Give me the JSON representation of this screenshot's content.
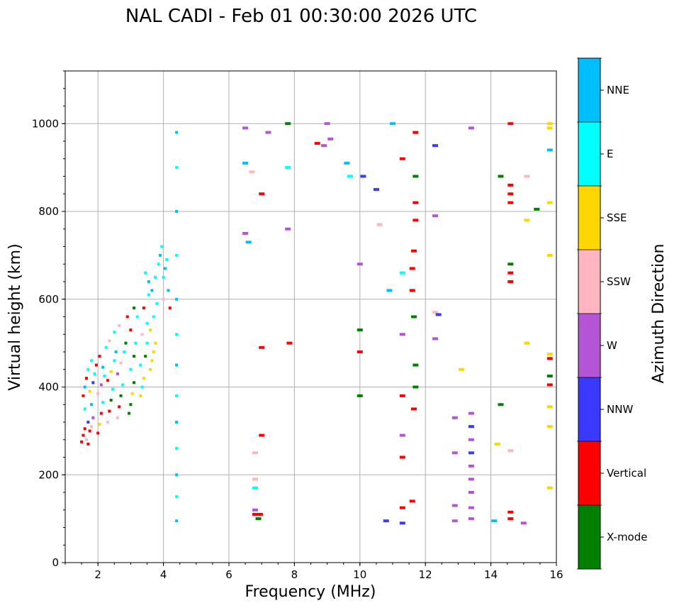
{
  "chart_data": {
    "type": "scatter",
    "title": "NAL CADI - Feb 01 00:30:00 2026 UTC",
    "xlabel": "Frequency (MHz)",
    "ylabel": "Virtual height (km)",
    "xlim": [
      1,
      16
    ],
    "ylim": [
      0,
      1120
    ],
    "xticks": [
      2,
      4,
      6,
      8,
      10,
      12,
      14,
      16
    ],
    "yticks": [
      0,
      200,
      400,
      600,
      800,
      1000
    ],
    "grid": true,
    "colorbar": {
      "label": "Azimuth Direction",
      "categories": [
        {
          "name": "X-mode",
          "color": "#008000"
        },
        {
          "name": "Vertical",
          "color": "#ff0000"
        },
        {
          "name": "NNW",
          "color": "#3a3aff"
        },
        {
          "name": "W",
          "color": "#b455d6"
        },
        {
          "name": "SSW",
          "color": "#ffb6c1"
        },
        {
          "name": "SSE",
          "color": "#ffd700"
        },
        {
          "name": "E",
          "color": "#00ffff"
        },
        {
          "name": "NNE",
          "color": "#00bfff"
        }
      ]
    },
    "points": [
      [
        1.5,
        275,
        1
      ],
      [
        1.55,
        290,
        1
      ],
      [
        1.6,
        305,
        1
      ],
      [
        1.65,
        280,
        4
      ],
      [
        1.7,
        320,
        2
      ],
      [
        1.6,
        350,
        6
      ],
      [
        1.55,
        380,
        1
      ],
      [
        1.6,
        400,
        7
      ],
      [
        1.65,
        420,
        1
      ],
      [
        1.7,
        440,
        6
      ],
      [
        1.75,
        300,
        1
      ],
      [
        1.8,
        310,
        4
      ],
      [
        1.85,
        330,
        3
      ],
      [
        1.8,
        360,
        7
      ],
      [
        1.75,
        390,
        5
      ],
      [
        1.85,
        410,
        2
      ],
      [
        1.9,
        430,
        6
      ],
      [
        1.95,
        450,
        1
      ],
      [
        1.8,
        460,
        6
      ],
      [
        1.7,
        270,
        1
      ],
      [
        2.0,
        295,
        1
      ],
      [
        2.05,
        315,
        5
      ],
      [
        2.1,
        340,
        1
      ],
      [
        2.15,
        365,
        6
      ],
      [
        2.0,
        385,
        4
      ],
      [
        2.1,
        405,
        3
      ],
      [
        2.2,
        425,
        6
      ],
      [
        2.15,
        445,
        7
      ],
      [
        2.05,
        470,
        1
      ],
      [
        2.25,
        490,
        6
      ],
      [
        2.3,
        320,
        4
      ],
      [
        2.35,
        345,
        1
      ],
      [
        2.4,
        370,
        0
      ],
      [
        2.45,
        395,
        6
      ],
      [
        2.3,
        415,
        1
      ],
      [
        2.4,
        435,
        5
      ],
      [
        2.5,
        460,
        6
      ],
      [
        2.55,
        480,
        7
      ],
      [
        2.35,
        505,
        4
      ],
      [
        2.5,
        525,
        6
      ],
      [
        2.6,
        330,
        4
      ],
      [
        2.65,
        355,
        1
      ],
      [
        2.7,
        380,
        0
      ],
      [
        2.75,
        405,
        6
      ],
      [
        2.6,
        430,
        3
      ],
      [
        2.7,
        455,
        4
      ],
      [
        2.8,
        480,
        6
      ],
      [
        2.85,
        500,
        0
      ],
      [
        2.65,
        540,
        4
      ],
      [
        2.9,
        560,
        1
      ],
      [
        2.95,
        340,
        0
      ],
      [
        3.0,
        360,
        0
      ],
      [
        3.05,
        385,
        5
      ],
      [
        3.1,
        410,
        0
      ],
      [
        3.0,
        440,
        6
      ],
      [
        3.1,
        470,
        0
      ],
      [
        3.15,
        500,
        6
      ],
      [
        3.0,
        530,
        1
      ],
      [
        3.2,
        560,
        6
      ],
      [
        3.1,
        580,
        0
      ],
      [
        3.3,
        380,
        5
      ],
      [
        3.35,
        400,
        6
      ],
      [
        3.4,
        420,
        5
      ],
      [
        3.3,
        450,
        6
      ],
      [
        3.45,
        470,
        0
      ],
      [
        3.5,
        500,
        6
      ],
      [
        3.35,
        520,
        4
      ],
      [
        3.5,
        545,
        6
      ],
      [
        3.4,
        580,
        1
      ],
      [
        3.55,
        610,
        6
      ],
      [
        3.6,
        440,
        5
      ],
      [
        3.65,
        460,
        5
      ],
      [
        3.7,
        480,
        5
      ],
      [
        3.75,
        500,
        5
      ],
      [
        3.6,
        530,
        5
      ],
      [
        3.7,
        560,
        6
      ],
      [
        3.8,
        590,
        6
      ],
      [
        3.65,
        620,
        7
      ],
      [
        3.75,
        650,
        6
      ],
      [
        3.85,
        680,
        6
      ],
      [
        3.9,
        700,
        7
      ],
      [
        3.95,
        720,
        6
      ],
      [
        4.0,
        650,
        6
      ],
      [
        4.05,
        670,
        7
      ],
      [
        4.1,
        690,
        6
      ],
      [
        4.15,
        620,
        7
      ],
      [
        4.0,
        600,
        4
      ],
      [
        4.2,
        580,
        1
      ],
      [
        3.55,
        640,
        7
      ],
      [
        3.45,
        660,
        6
      ],
      [
        4.4,
        95,
        7
      ],
      [
        4.4,
        150,
        6
      ],
      [
        4.4,
        200,
        7
      ],
      [
        4.4,
        260,
        6
      ],
      [
        4.4,
        320,
        7
      ],
      [
        4.4,
        380,
        6
      ],
      [
        4.4,
        450,
        7
      ],
      [
        4.4,
        520,
        6
      ],
      [
        4.4,
        600,
        7
      ],
      [
        4.4,
        700,
        6
      ],
      [
        4.4,
        800,
        7
      ],
      [
        4.4,
        900,
        6
      ],
      [
        4.4,
        980,
        7
      ],
      [
        6.5,
        750,
        3
      ],
      [
        6.6,
        730,
        7
      ],
      [
        6.5,
        910,
        7
      ],
      [
        6.5,
        990,
        3
      ],
      [
        6.7,
        890,
        4
      ],
      [
        6.8,
        110,
        1
      ],
      [
        6.8,
        120,
        3
      ],
      [
        6.8,
        170,
        6
      ],
      [
        6.8,
        190,
        4
      ],
      [
        6.8,
        250,
        4
      ],
      [
        6.9,
        100,
        0
      ],
      [
        6.95,
        110,
        1
      ],
      [
        7.0,
        290,
        1
      ],
      [
        7.0,
        490,
        1
      ],
      [
        7.0,
        840,
        1
      ],
      [
        7.2,
        980,
        3
      ],
      [
        7.8,
        1000,
        0
      ],
      [
        7.8,
        900,
        6
      ],
      [
        7.85,
        500,
        1
      ],
      [
        7.8,
        760,
        3
      ],
      [
        8.7,
        955,
        1
      ],
      [
        8.9,
        950,
        3
      ],
      [
        9.0,
        1000,
        3
      ],
      [
        9.1,
        965,
        3
      ],
      [
        9.6,
        910,
        7
      ],
      [
        9.7,
        880,
        6
      ],
      [
        10.0,
        380,
        0
      ],
      [
        10.0,
        480,
        1
      ],
      [
        10.0,
        530,
        0
      ],
      [
        10.0,
        680,
        3
      ],
      [
        10.1,
        880,
        2
      ],
      [
        10.5,
        850,
        2
      ],
      [
        10.6,
        770,
        4
      ],
      [
        10.8,
        95,
        2
      ],
      [
        10.9,
        620,
        7
      ],
      [
        11.0,
        1000,
        7
      ],
      [
        11.3,
        90,
        2
      ],
      [
        11.3,
        125,
        1
      ],
      [
        11.3,
        240,
        1
      ],
      [
        11.3,
        290,
        3
      ],
      [
        11.3,
        380,
        1
      ],
      [
        11.3,
        520,
        3
      ],
      [
        11.3,
        660,
        6
      ],
      [
        11.3,
        920,
        1
      ],
      [
        11.6,
        140,
        1
      ],
      [
        11.65,
        350,
        1
      ],
      [
        11.7,
        400,
        0
      ],
      [
        11.7,
        450,
        0
      ],
      [
        11.65,
        560,
        0
      ],
      [
        11.6,
        620,
        1
      ],
      [
        11.6,
        670,
        1
      ],
      [
        11.65,
        710,
        1
      ],
      [
        11.7,
        780,
        1
      ],
      [
        11.7,
        820,
        1
      ],
      [
        11.7,
        880,
        0
      ],
      [
        11.7,
        980,
        1
      ],
      [
        12.3,
        510,
        3
      ],
      [
        12.3,
        570,
        4
      ],
      [
        12.4,
        565,
        2
      ],
      [
        12.3,
        790,
        3
      ],
      [
        12.3,
        950,
        2
      ],
      [
        12.9,
        95,
        3
      ],
      [
        12.9,
        130,
        3
      ],
      [
        12.9,
        250,
        3
      ],
      [
        12.9,
        330,
        3
      ],
      [
        13.1,
        440,
        5
      ],
      [
        13.4,
        100,
        3
      ],
      [
        13.4,
        125,
        3
      ],
      [
        13.4,
        160,
        3
      ],
      [
        13.4,
        190,
        3
      ],
      [
        13.4,
        220,
        3
      ],
      [
        13.4,
        250,
        2
      ],
      [
        13.4,
        280,
        3
      ],
      [
        13.4,
        310,
        2
      ],
      [
        13.4,
        340,
        3
      ],
      [
        13.4,
        990,
        3
      ],
      [
        14.1,
        95,
        7
      ],
      [
        14.2,
        270,
        5
      ],
      [
        14.3,
        360,
        0
      ],
      [
        14.3,
        880,
        0
      ],
      [
        14.6,
        100,
        1
      ],
      [
        14.6,
        115,
        1
      ],
      [
        14.6,
        255,
        4
      ],
      [
        14.6,
        640,
        1
      ],
      [
        14.6,
        660,
        1
      ],
      [
        14.6,
        680,
        0
      ],
      [
        14.6,
        820,
        1
      ],
      [
        14.6,
        840,
        1
      ],
      [
        14.6,
        860,
        1
      ],
      [
        14.6,
        1000,
        1
      ],
      [
        15.0,
        90,
        3
      ],
      [
        15.1,
        500,
        5
      ],
      [
        15.1,
        780,
        5
      ],
      [
        15.1,
        880,
        4
      ],
      [
        15.4,
        805,
        0
      ],
      [
        15.8,
        170,
        5
      ],
      [
        15.8,
        310,
        5
      ],
      [
        15.8,
        355,
        5
      ],
      [
        15.8,
        405,
        1
      ],
      [
        15.8,
        425,
        0
      ],
      [
        15.8,
        465,
        1
      ],
      [
        15.8,
        475,
        5
      ],
      [
        15.8,
        700,
        5
      ],
      [
        15.8,
        820,
        5
      ],
      [
        15.8,
        940,
        7
      ],
      [
        15.8,
        990,
        5
      ],
      [
        15.8,
        1000,
        5
      ]
    ]
  }
}
